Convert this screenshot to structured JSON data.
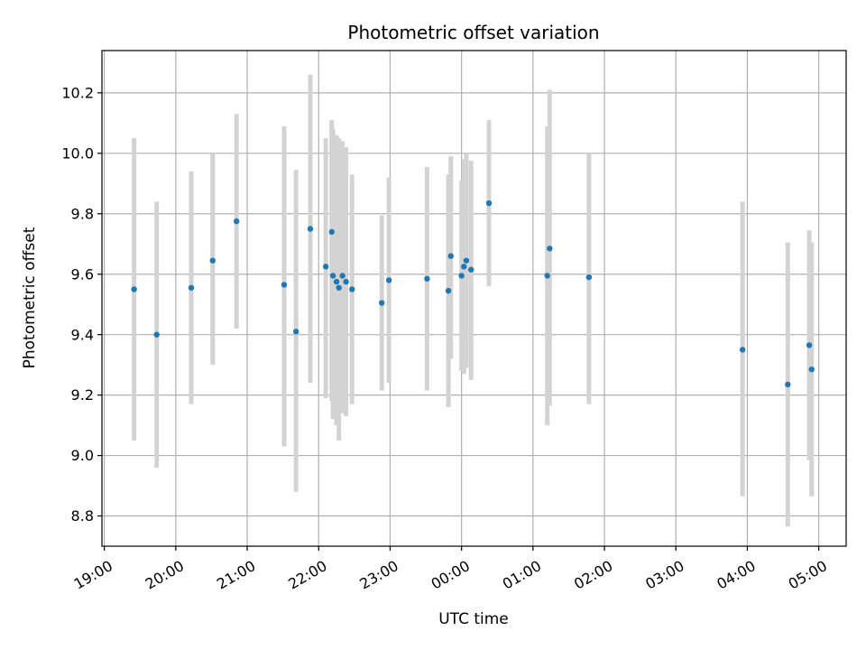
{
  "chart_data": {
    "type": "scatter",
    "title": "Photometric offset variation",
    "xlabel": "UTC time",
    "ylabel": "Photometric offset",
    "x_kind": "time",
    "xlim": [
      "18:58",
      "05:23"
    ],
    "ylim": [
      8.7,
      10.34
    ],
    "grid": true,
    "x_ticks": [
      "19:00",
      "20:00",
      "21:00",
      "22:00",
      "23:00",
      "00:00",
      "01:00",
      "02:00",
      "03:00",
      "04:00",
      "05:00"
    ],
    "y_ticks": [
      8.8,
      9.0,
      9.2,
      9.4,
      9.6,
      9.8,
      10.0,
      10.2
    ],
    "marker_color": "#1f77b4",
    "errorbar_color": "#d3d3d3",
    "points": [
      {
        "t": "19:25",
        "y": 9.55,
        "lo": 9.05,
        "hi": 10.05
      },
      {
        "t": "19:44",
        "y": 9.4,
        "lo": 8.96,
        "hi": 9.84
      },
      {
        "t": "20:13",
        "y": 9.555,
        "lo": 9.17,
        "hi": 9.94
      },
      {
        "t": "20:31",
        "y": 9.645,
        "lo": 9.3,
        "hi": 10.0
      },
      {
        "t": "20:51",
        "y": 9.775,
        "lo": 9.42,
        "hi": 10.13
      },
      {
        "t": "21:31",
        "y": 9.565,
        "lo": 9.03,
        "hi": 10.09
      },
      {
        "t": "21:41",
        "y": 9.41,
        "lo": 8.88,
        "hi": 9.945
      },
      {
        "t": "21:53",
        "y": 9.75,
        "lo": 9.24,
        "hi": 10.26
      },
      {
        "t": "22:06",
        "y": 9.625,
        "lo": 9.19,
        "hi": 10.05
      },
      {
        "t": "22:11",
        "y": 9.74,
        "lo": 9.18,
        "hi": 10.11
      },
      {
        "t": "22:12",
        "y": 9.595,
        "lo": 9.12,
        "hi": 10.08
      },
      {
        "t": "22:15",
        "y": 9.575,
        "lo": 9.1,
        "hi": 10.06
      },
      {
        "t": "22:17",
        "y": 9.555,
        "lo": 9.05,
        "hi": 10.05
      },
      {
        "t": "22:20",
        "y": 9.595,
        "lo": 9.14,
        "hi": 10.04
      },
      {
        "t": "22:23",
        "y": 9.575,
        "lo": 9.13,
        "hi": 10.02
      },
      {
        "t": "22:28",
        "y": 9.55,
        "lo": 9.17,
        "hi": 9.93
      },
      {
        "t": "22:53",
        "y": 9.505,
        "lo": 9.215,
        "hi": 9.795
      },
      {
        "t": "22:59",
        "y": 9.58,
        "lo": 9.24,
        "hi": 9.92
      },
      {
        "t": "23:31",
        "y": 9.585,
        "lo": 9.215,
        "hi": 9.955
      },
      {
        "t": "23:49",
        "y": 9.545,
        "lo": 9.16,
        "hi": 9.93
      },
      {
        "t": "23:51",
        "y": 9.66,
        "lo": 9.32,
        "hi": 9.99
      },
      {
        "t": "00:00",
        "y": 9.595,
        "lo": 9.28,
        "hi": 9.91
      },
      {
        "t": "00:02",
        "y": 9.625,
        "lo": 9.27,
        "hi": 9.98
      },
      {
        "t": "00:04",
        "y": 9.645,
        "lo": 9.29,
        "hi": 10.0
      },
      {
        "t": "00:08",
        "y": 9.615,
        "lo": 9.25,
        "hi": 9.975
      },
      {
        "t": "00:23",
        "y": 9.835,
        "lo": 9.56,
        "hi": 10.11
      },
      {
        "t": "01:12",
        "y": 9.595,
        "lo": 9.1,
        "hi": 10.09
      },
      {
        "t": "01:14",
        "y": 9.685,
        "lo": 9.165,
        "hi": 10.21
      },
      {
        "t": "01:47",
        "y": 9.59,
        "lo": 9.17,
        "hi": 10.0
      },
      {
        "t": "03:56",
        "y": 9.35,
        "lo": 8.865,
        "hi": 9.84
      },
      {
        "t": "04:34",
        "y": 9.235,
        "lo": 8.765,
        "hi": 9.705
      },
      {
        "t": "04:52",
        "y": 9.365,
        "lo": 8.985,
        "hi": 9.745
      },
      {
        "t": "04:54",
        "y": 9.285,
        "lo": 8.865,
        "hi": 9.705
      }
    ]
  }
}
